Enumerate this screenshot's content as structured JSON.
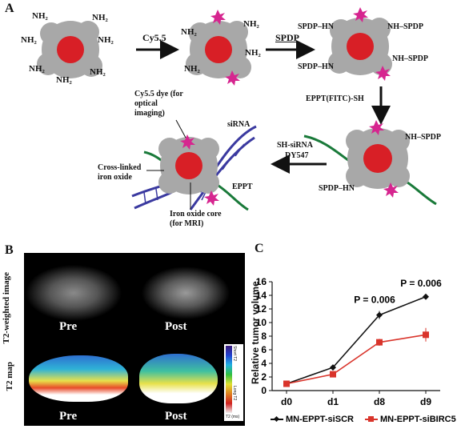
{
  "panel_a": {
    "label": "A",
    "nh2": "NH₂",
    "step1": "Cy5.5",
    "step2": "SPDP",
    "step3": "EPPT(FITC)-SH",
    "step4_line1": "SH-siRNA",
    "step4_line2": "DY547",
    "nh_spdp": "NH–SPDP",
    "spdp_hn": "SPDP–HN",
    "cy55_note": "Cy5.5 dye (for optical imaging)",
    "sirna": "siRNA",
    "crosslinked": "Cross-linked iron oxide",
    "eppt": "EPPT",
    "core_note": "Iron oxide core (for MRI)"
  },
  "panel_b": {
    "label": "B",
    "row1_label": "T2-weighted image",
    "row2_label": "T2 map",
    "pre": "Pre",
    "post": "Post",
    "scale_top": "Short T2",
    "scale_bottom": "Long T2",
    "scale_unit": "T2 (ms)"
  },
  "panel_c": {
    "label": "C"
  },
  "chart_data": {
    "type": "line",
    "ylabel": "Relative tumor volume",
    "categories": [
      "d0",
      "d1",
      "d8",
      "d9"
    ],
    "ylim": [
      0,
      16
    ],
    "yticks": [
      0,
      2,
      4,
      6,
      8,
      10,
      12,
      14,
      16
    ],
    "series": [
      {
        "name": "MN-EPPT-siSCR",
        "color": "#111111",
        "marker": "diamond",
        "values": [
          1.0,
          3.4,
          11.1,
          13.8
        ],
        "errors": [
          0.2,
          0.3,
          0.6,
          0.3
        ]
      },
      {
        "name": "MN-EPPT-siBIRC5",
        "color": "#d9342b",
        "marker": "square",
        "values": [
          1.0,
          2.4,
          7.1,
          8.2
        ],
        "errors": [
          0.2,
          0.4,
          0.5,
          1.0
        ]
      }
    ],
    "annotations": [
      {
        "text": "P = 0.006",
        "category": "d8"
      },
      {
        "text": "P = 0.006",
        "category": "d9"
      }
    ]
  }
}
